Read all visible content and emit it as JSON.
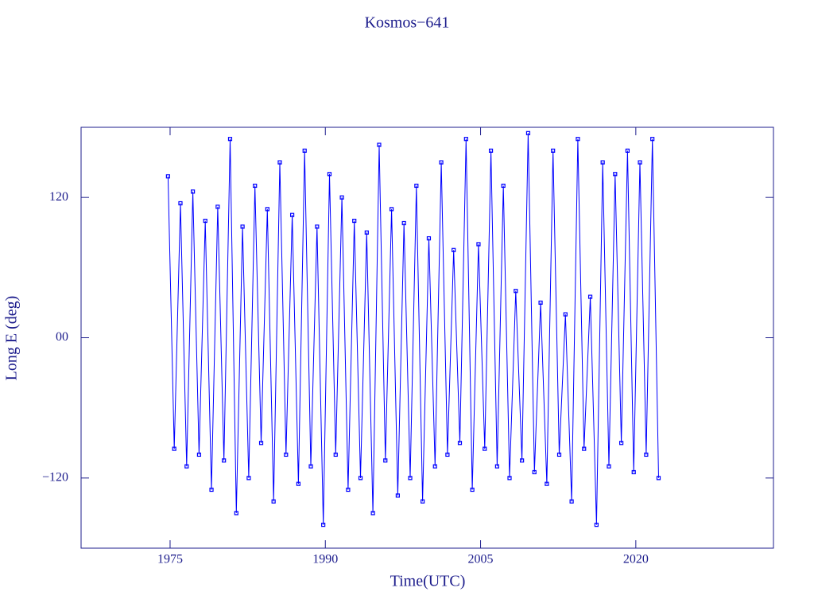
{
  "chart_data": {
    "type": "line",
    "title": "Kosmos−641",
    "x_label": "Time(UTC)",
    "y_label": "Long E (deg)",
    "color": "#0000ff",
    "axis_color": "#1c1c8c",
    "xlim": [
      1966.4,
      2033.3
    ],
    "ylim": [
      -180,
      180
    ],
    "xticks": [
      1975,
      1990,
      2005,
      2020
    ],
    "yticks": [
      {
        "value": -120,
        "label": "−120"
      },
      {
        "value": 0,
        "label": "00"
      },
      120
    ],
    "x": [
      1974.8,
      1975.4,
      1976.0,
      1976.6,
      1977.2,
      1977.8,
      1978.4,
      1979.0,
      1979.6,
      1980.2,
      1980.8,
      1981.4,
      1982.0,
      1982.6,
      1983.2,
      1983.8,
      1984.4,
      1985.0,
      1985.6,
      1986.2,
      1986.8,
      1987.4,
      1988.0,
      1988.6,
      1989.2,
      1989.8,
      1990.4,
      1991.0,
      1991.6,
      1992.2,
      1992.8,
      1993.4,
      1994.0,
      1994.6,
      1995.2,
      1995.8,
      1996.4,
      1997.0,
      1997.6,
      1998.2,
      1998.8,
      1999.4,
      2000.0,
      2000.6,
      2001.2,
      2001.8,
      2002.4,
      2003.0,
      2003.6,
      2004.2,
      2004.8,
      2005.4,
      2006.0,
      2006.6,
      2007.2,
      2007.8,
      2008.4,
      2009.0,
      2009.6,
      2010.2,
      2010.8,
      2011.4,
      2012.0,
      2012.6,
      2013.2,
      2013.8,
      2014.4,
      2015.0,
      2015.6,
      2016.2,
      2016.8,
      2017.4,
      2018.0,
      2018.6,
      2019.2,
      2019.8,
      2020.4,
      2021.0,
      2021.6,
      2022.2
    ],
    "values": [
      138,
      -95,
      115,
      -110,
      125,
      -100,
      100,
      -130,
      112,
      -105,
      170,
      -150,
      95,
      -120,
      130,
      -90,
      110,
      -140,
      150,
      -100,
      105,
      -125,
      160,
      -110,
      95,
      -160,
      140,
      -100,
      120,
      -130,
      100,
      -120,
      90,
      -150,
      165,
      -105,
      110,
      -135,
      98,
      -120,
      130,
      -140,
      85,
      -110,
      150,
      -100,
      75,
      -90,
      170,
      -130,
      80,
      -95,
      160,
      -110,
      130,
      -120,
      40,
      -105,
      175,
      -115,
      30,
      -125,
      160,
      -100,
      20,
      -140,
      170,
      -95,
      35,
      -160,
      150,
      -110,
      140,
      -90,
      160,
      -115,
      150,
      -100,
      170,
      -120
    ]
  }
}
